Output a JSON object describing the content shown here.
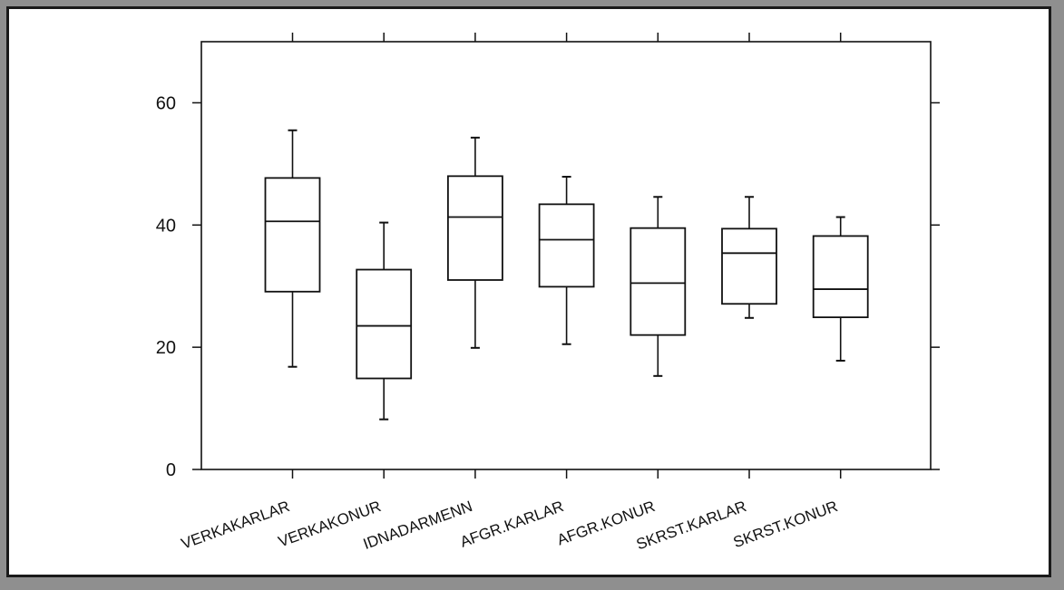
{
  "chart_data": {
    "type": "box",
    "title": "",
    "xlabel": "",
    "ylabel": "",
    "ylim": [
      0,
      70
    ],
    "yticks": [
      0,
      20,
      40,
      60
    ],
    "grid": false,
    "categories": [
      "VERKAKARLAR",
      "VERKAKONUR",
      "IDNADARMENN",
      "AFGR.KARLAR",
      "AFGR.KONUR",
      "SKRST.KARLAR",
      "SKRST.KONUR"
    ],
    "boxes": [
      {
        "category": "VERKAKARLAR",
        "min": 16.8,
        "q1": 29.1,
        "median": 40.6,
        "q3": 47.7,
        "max": 55.5
      },
      {
        "category": "VERKAKONUR",
        "min": 8.2,
        "q1": 14.9,
        "median": 23.5,
        "q3": 32.7,
        "max": 40.4
      },
      {
        "category": "IDNADARMENN",
        "min": 19.9,
        "q1": 31.0,
        "median": 41.3,
        "q3": 48.0,
        "max": 54.3
      },
      {
        "category": "AFGR.KARLAR",
        "min": 20.5,
        "q1": 29.9,
        "median": 37.6,
        "q3": 43.4,
        "max": 47.9
      },
      {
        "category": "AFGR.KONUR",
        "min": 15.3,
        "q1": 22.0,
        "median": 30.5,
        "q3": 39.5,
        "max": 44.6
      },
      {
        "category": "SKRST.KARLAR",
        "min": 24.8,
        "q1": 27.1,
        "median": 35.4,
        "q3": 39.4,
        "max": 44.6
      },
      {
        "category": "SKRST.KONUR",
        "min": 17.8,
        "q1": 24.9,
        "median": 29.5,
        "q3": 38.2,
        "max": 41.3
      }
    ]
  }
}
